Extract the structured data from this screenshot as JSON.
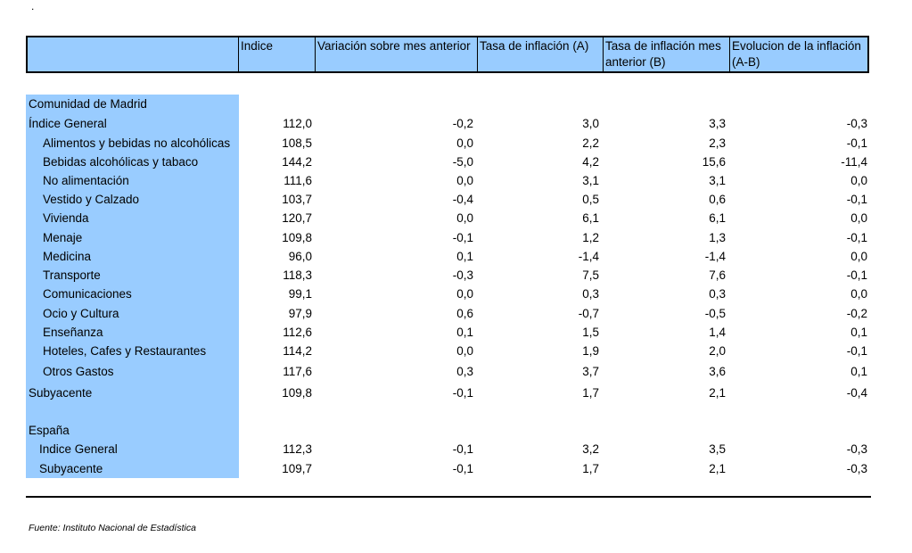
{
  "dot": ".",
  "headers": [
    "Indice",
    "Variación sobre mes anterior",
    "Tasa de inflación (A)",
    "Tasa de inflación mes anterior (B)",
    "Evolucion de la inflación (A-B)"
  ],
  "section_madrid": "Comunidad de Madrid",
  "madrid_rows": [
    {
      "label": "Índice General",
      "values": [
        "112,0",
        "-0,2",
        "3,0",
        "3,3",
        "-0,3"
      ]
    },
    {
      "label": "Alimentos y bebidas no alcohólicas",
      "values": [
        "108,5",
        "0,0",
        "2,2",
        "2,3",
        "-0,1"
      ]
    },
    {
      "label": "Bebidas alcohólicas y tabaco",
      "values": [
        "144,2",
        "-5,0",
        "4,2",
        "15,6",
        "-11,4"
      ]
    },
    {
      "label": "No alimentación",
      "values": [
        "111,6",
        "0,0",
        "3,1",
        "3,1",
        "0,0"
      ]
    },
    {
      "label": "Vestido y Calzado",
      "values": [
        "103,7",
        "-0,4",
        "0,5",
        "0,6",
        "-0,1"
      ]
    },
    {
      "label": "Vivienda",
      "values": [
        "120,7",
        "0,0",
        "6,1",
        "6,1",
        "0,0"
      ]
    },
    {
      "label": "Menaje",
      "values": [
        "109,8",
        "-0,1",
        "1,2",
        "1,3",
        "-0,1"
      ]
    },
    {
      "label": "Medicina",
      "values": [
        "96,0",
        "0,1",
        "-1,4",
        "-1,4",
        "0,0"
      ]
    },
    {
      "label": "Transporte",
      "values": [
        "118,3",
        "-0,3",
        "7,5",
        "7,6",
        "-0,1"
      ]
    },
    {
      "label": "Comunicaciones",
      "values": [
        "99,1",
        "0,0",
        "0,3",
        "0,3",
        "0,0"
      ]
    },
    {
      "label": "Ocio y Cultura",
      "values": [
        "97,9",
        "0,6",
        "-0,7",
        "-0,5",
        "-0,2"
      ]
    },
    {
      "label": "Enseñanza",
      "values": [
        "112,6",
        "0,1",
        "1,5",
        "1,4",
        "0,1"
      ]
    },
    {
      "label": "Hoteles, Cafes y Restaurantes",
      "values": [
        "114,2",
        "0,0",
        "1,9",
        "2,0",
        "-0,1"
      ]
    },
    {
      "label": "Otros Gastos",
      "values": [
        "117,6",
        "0,3",
        "3,7",
        "3,6",
        "0,1"
      ]
    },
    {
      "label": "Subyacente",
      "values": [
        "109,8",
        "-0,1",
        "1,7",
        "2,1",
        "-0,4"
      ]
    }
  ],
  "section_espana": "España",
  "espana_rows": [
    {
      "label": "Indice General",
      "values": [
        "112,3",
        "-0,1",
        "3,2",
        "3,5",
        "-0,3"
      ]
    },
    {
      "label": "Subyacente",
      "values": [
        "109,7",
        "-0,1",
        "1,7",
        "2,1",
        "-0,3"
      ]
    }
  ],
  "source": "Fuente: Instituto Nacional de Estadística"
}
